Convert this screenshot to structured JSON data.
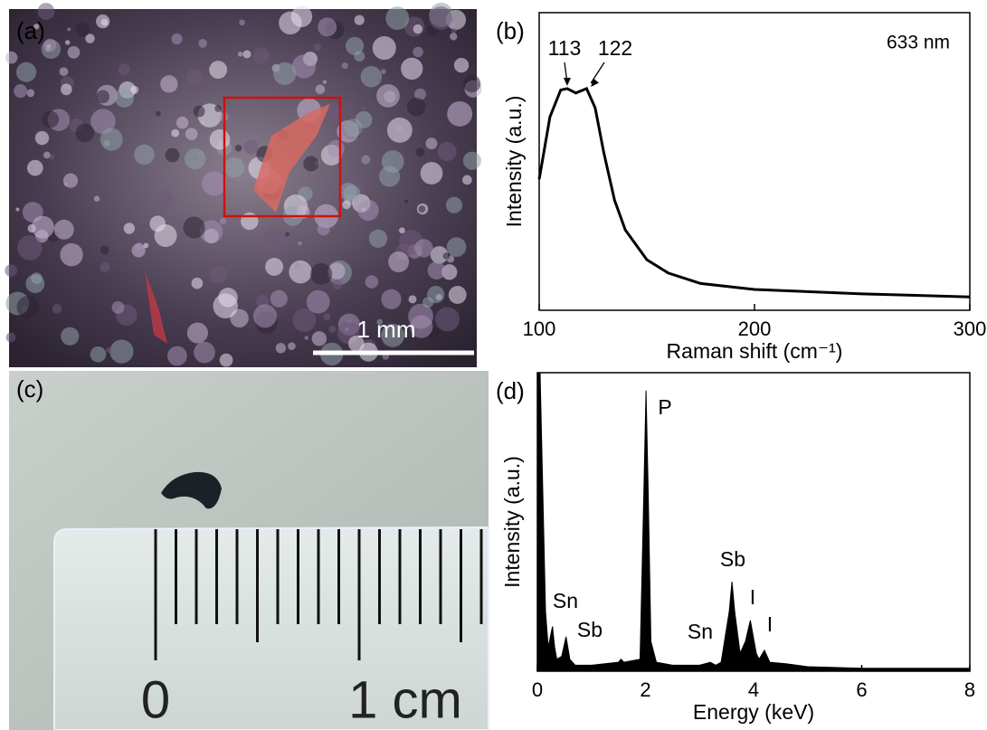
{
  "panels": {
    "a": {
      "label": "(a)",
      "scale_bar": "1 mm"
    },
    "c": {
      "label": "(c)",
      "ruler_labels": [
        "0",
        "1 cm"
      ]
    }
  },
  "chart_data": [
    {
      "type": "line",
      "label": "(b)",
      "xlabel": "Raman shift (cm⁻¹)",
      "ylabel": "Intensity (a.u.)",
      "color": "#000000",
      "x": [
        100,
        105,
        110,
        113,
        117,
        122,
        126,
        130,
        135,
        140,
        150,
        160,
        175,
        200,
        250,
        300
      ],
      "values": [
        44,
        65,
        74,
        74.5,
        73,
        74.5,
        68,
        53,
        37,
        27,
        17,
        12.5,
        9,
        7,
        5.5,
        4.5
      ],
      "xlim": [
        100,
        300
      ],
      "ylim": [
        0,
        100
      ],
      "xticks": [
        100,
        200,
        300
      ],
      "annotations": [
        "113",
        "122",
        "633 nm"
      ]
    },
    {
      "type": "area",
      "label": "(d)",
      "xlabel": "Energy (keV)",
      "ylabel": "Intensity (a.u.)",
      "color": "#000000",
      "x": [
        0,
        0.05,
        0.1,
        0.15,
        0.2,
        0.28,
        0.32,
        0.36,
        0.45,
        0.53,
        0.6,
        0.7,
        1.0,
        1.5,
        1.55,
        1.6,
        1.9,
        1.97,
        2.01,
        2.05,
        2.1,
        2.2,
        2.5,
        3.0,
        3.2,
        3.3,
        3.4,
        3.55,
        3.6,
        3.65,
        3.75,
        3.85,
        3.94,
        4.05,
        4.1,
        4.2,
        4.3,
        4.6,
        5,
        6,
        7,
        8
      ],
      "values": [
        100,
        100,
        60,
        20,
        8,
        15,
        8,
        4,
        5,
        11.5,
        4,
        2,
        2,
        3,
        4,
        3,
        4,
        60,
        94,
        60,
        10,
        3,
        2,
        2,
        3,
        2,
        3,
        20,
        30,
        20,
        6,
        10,
        17,
        6,
        4,
        7,
        3,
        2.5,
        1.5,
        1,
        1,
        1
      ],
      "xlim": [
        0,
        8
      ],
      "ylim": [
        0,
        100
      ],
      "xticks": [
        0,
        2,
        4,
        6,
        8
      ],
      "annotations": [
        "Sn",
        "Sb",
        "P",
        "Sn",
        "Sb",
        "I",
        "I"
      ]
    }
  ]
}
